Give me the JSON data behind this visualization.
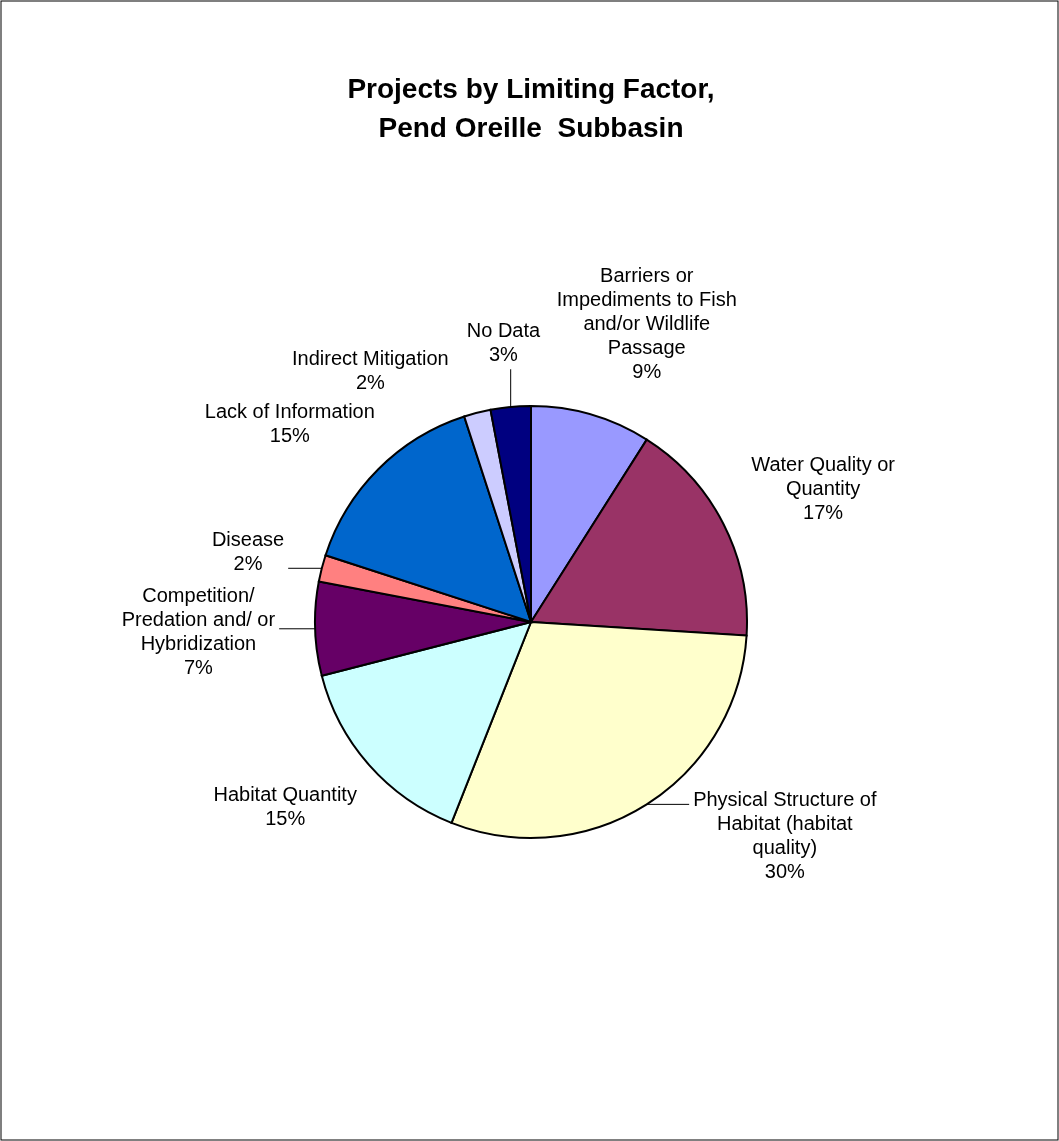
{
  "chart_data": {
    "type": "pie",
    "title": "Projects by Limiting Factor,\nPend Oreille  Subbasin",
    "categories": [
      "Barriers or Impediments to Fish and/or Wildlife Passage",
      "Water Quality or Quantity",
      "Physical Structure of Habitat (habitat quality)",
      "Habitat Quantity",
      "Competition/ Predation and/ or Hybridization",
      "Disease",
      "Lack of Information",
      "Indirect Mitigation",
      "No Data"
    ],
    "values": [
      9,
      17,
      30,
      15,
      7,
      2,
      15,
      2,
      3
    ],
    "colors": [
      "#9999ff",
      "#993366",
      "#ffffcc",
      "#ccffff",
      "#660066",
      "#ff8080",
      "#0066cc",
      "#ccccff",
      "#000080"
    ],
    "value_labels": [
      "9%",
      "17%",
      "30%",
      "15%",
      "7%",
      "2%",
      "15%",
      "2%",
      "3%"
    ]
  }
}
